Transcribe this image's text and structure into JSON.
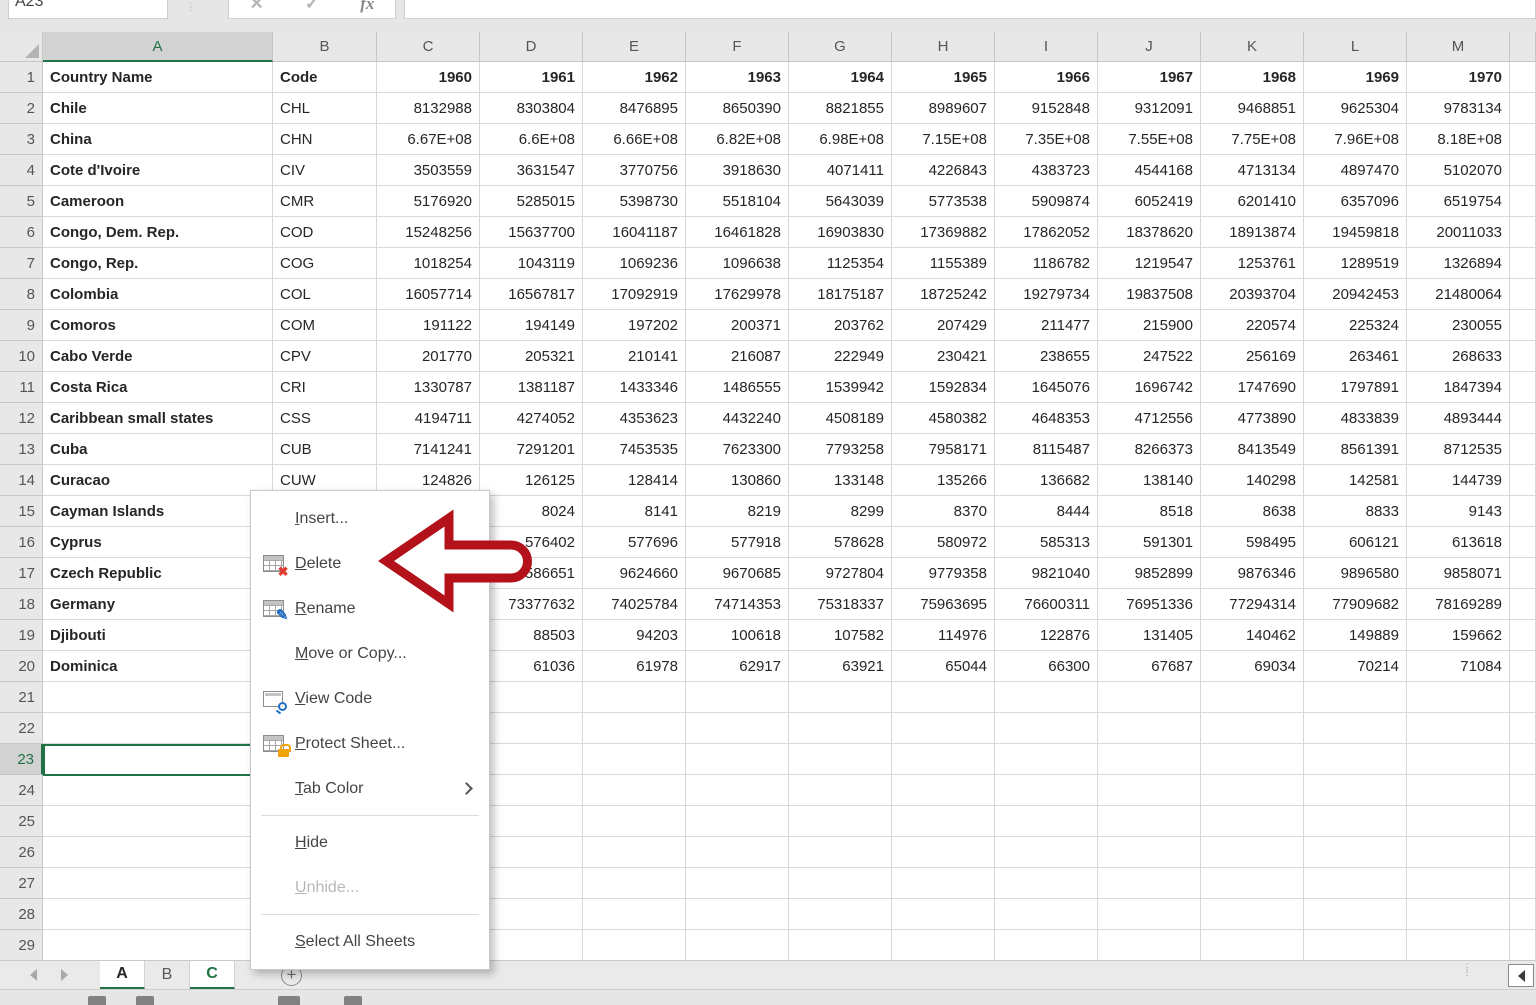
{
  "formula_bar": {
    "name_box": "A23",
    "cancel_glyph": "✕",
    "enter_glyph": "✓",
    "fx_label": "fx",
    "formula_value": ""
  },
  "colors": {
    "accent_green": "#217346",
    "arrow_red": "#b3121b",
    "tab_active_text": "#217346"
  },
  "sheet": {
    "columns": [
      "A",
      "B",
      "C",
      "D",
      "E",
      "F",
      "G",
      "H",
      "I",
      "J",
      "K",
      "L",
      "M"
    ],
    "row_numbers": [
      1,
      2,
      3,
      4,
      5,
      6,
      7,
      8,
      9,
      10,
      11,
      12,
      13,
      14,
      15,
      16,
      17,
      18,
      19,
      20,
      21,
      22,
      23,
      24,
      25,
      26,
      27,
      28,
      29
    ],
    "selected_cell": "A23",
    "header_row": [
      "Country Name",
      "Code",
      "1960",
      "1961",
      "1962",
      "1963",
      "1964",
      "1965",
      "1966",
      "1967",
      "1968",
      "1969",
      "1970"
    ],
    "rows": [
      {
        "row": 2,
        "cells": [
          "Chile",
          "CHL",
          "8132988",
          "8303804",
          "8476895",
          "8650390",
          "8821855",
          "8989607",
          "9152848",
          "9312091",
          "9468851",
          "9625304",
          "9783134"
        ]
      },
      {
        "row": 3,
        "cells": [
          "China",
          "CHN",
          "6.67E+08",
          "6.6E+08",
          "6.66E+08",
          "6.82E+08",
          "6.98E+08",
          "7.15E+08",
          "7.35E+08",
          "7.55E+08",
          "7.75E+08",
          "7.96E+08",
          "8.18E+08"
        ]
      },
      {
        "row": 4,
        "cells": [
          "Cote d'Ivoire",
          "CIV",
          "3503559",
          "3631547",
          "3770756",
          "3918630",
          "4071411",
          "4226843",
          "4383723",
          "4544168",
          "4713134",
          "4897470",
          "5102070"
        ]
      },
      {
        "row": 5,
        "cells": [
          "Cameroon",
          "CMR",
          "5176920",
          "5285015",
          "5398730",
          "5518104",
          "5643039",
          "5773538",
          "5909874",
          "6052419",
          "6201410",
          "6357096",
          "6519754"
        ]
      },
      {
        "row": 6,
        "cells": [
          "Congo, Dem. Rep.",
          "COD",
          "15248256",
          "15637700",
          "16041187",
          "16461828",
          "16903830",
          "17369882",
          "17862052",
          "18378620",
          "18913874",
          "19459818",
          "20011033"
        ]
      },
      {
        "row": 7,
        "cells": [
          "Congo, Rep.",
          "COG",
          "1018254",
          "1043119",
          "1069236",
          "1096638",
          "1125354",
          "1155389",
          "1186782",
          "1219547",
          "1253761",
          "1289519",
          "1326894"
        ]
      },
      {
        "row": 8,
        "cells": [
          "Colombia",
          "COL",
          "16057714",
          "16567817",
          "17092919",
          "17629978",
          "18175187",
          "18725242",
          "19279734",
          "19837508",
          "20393704",
          "20942453",
          "21480064"
        ]
      },
      {
        "row": 9,
        "cells": [
          "Comoros",
          "COM",
          "191122",
          "194149",
          "197202",
          "200371",
          "203762",
          "207429",
          "211477",
          "215900",
          "220574",
          "225324",
          "230055"
        ]
      },
      {
        "row": 10,
        "cells": [
          "Cabo Verde",
          "CPV",
          "201770",
          "205321",
          "210141",
          "216087",
          "222949",
          "230421",
          "238655",
          "247522",
          "256169",
          "263461",
          "268633"
        ]
      },
      {
        "row": 11,
        "cells": [
          "Costa Rica",
          "CRI",
          "1330787",
          "1381187",
          "1433346",
          "1486555",
          "1539942",
          "1592834",
          "1645076",
          "1696742",
          "1747690",
          "1797891",
          "1847394"
        ]
      },
      {
        "row": 12,
        "cells": [
          "Caribbean small states",
          "CSS",
          "4194711",
          "4274052",
          "4353623",
          "4432240",
          "4508189",
          "4580382",
          "4648353",
          "4712556",
          "4773890",
          "4833839",
          "4893444"
        ]
      },
      {
        "row": 13,
        "cells": [
          "Cuba",
          "CUB",
          "7141241",
          "7291201",
          "7453535",
          "7623300",
          "7793258",
          "7958171",
          "8115487",
          "8266373",
          "8413549",
          "8561391",
          "8712535"
        ]
      },
      {
        "row": 14,
        "cells": [
          "Curacao",
          "CUW",
          "124826",
          "126125",
          "128414",
          "130860",
          "133148",
          "135266",
          "136682",
          "138140",
          "140298",
          "142581",
          "144739"
        ]
      },
      {
        "row": 15,
        "cells": [
          "Cayman Islands",
          "",
          "",
          "8024",
          "8141",
          "8219",
          "8299",
          "8370",
          "8444",
          "8518",
          "8638",
          "8833",
          "9143"
        ]
      },
      {
        "row": 16,
        "cells": [
          "Cyprus",
          "",
          "",
          "576402",
          "577696",
          "577918",
          "578628",
          "580972",
          "585313",
          "591301",
          "598495",
          "606121",
          "613618"
        ]
      },
      {
        "row": 17,
        "cells": [
          "Czech Republic",
          "",
          "",
          "9586651",
          "9624660",
          "9670685",
          "9727804",
          "9779358",
          "9821040",
          "9852899",
          "9876346",
          "9896580",
          "9858071"
        ]
      },
      {
        "row": 18,
        "cells": [
          "Germany",
          "",
          "",
          "73377632",
          "74025784",
          "74714353",
          "75318337",
          "75963695",
          "76600311",
          "76951336",
          "77294314",
          "77909682",
          "78169289"
        ]
      },
      {
        "row": 19,
        "cells": [
          "Djibouti",
          "",
          "",
          "88503",
          "94203",
          "100618",
          "107582",
          "114976",
          "122876",
          "131405",
          "140462",
          "149889",
          "159662"
        ]
      },
      {
        "row": 20,
        "cells": [
          "Dominica",
          "",
          "",
          "61036",
          "61978",
          "62917",
          "63921",
          "65044",
          "66300",
          "67687",
          "69034",
          "70214",
          "71084"
        ]
      }
    ]
  },
  "context_menu": {
    "items": [
      {
        "label": "Insert...",
        "icon": null,
        "enabled": true,
        "submenu": false
      },
      {
        "label": "Delete",
        "icon": "delete-table-icon",
        "enabled": true,
        "submenu": false
      },
      {
        "label": "Rename",
        "icon": "rename-table-icon",
        "enabled": true,
        "submenu": false
      },
      {
        "label": "Move or Copy...",
        "icon": null,
        "enabled": true,
        "submenu": false
      },
      {
        "label": "View Code",
        "icon": "view-code-icon",
        "enabled": true,
        "submenu": false
      },
      {
        "label": "Protect Sheet...",
        "icon": "protect-sheet-icon",
        "enabled": true,
        "submenu": false
      },
      {
        "label": "Tab Color",
        "icon": null,
        "enabled": true,
        "submenu": true
      },
      {
        "sep": true
      },
      {
        "label": "Hide",
        "icon": null,
        "enabled": true,
        "submenu": false
      },
      {
        "label": "Unhide...",
        "icon": null,
        "enabled": false,
        "submenu": false
      },
      {
        "sep": true
      },
      {
        "label": "Select All Sheets",
        "icon": null,
        "enabled": true,
        "submenu": false
      }
    ]
  },
  "sheet_tabs": {
    "tabs": [
      {
        "label": "A",
        "state": "selected"
      },
      {
        "label": "B",
        "state": "normal"
      },
      {
        "label": "C",
        "state": "active"
      }
    ],
    "add_label": "+"
  }
}
